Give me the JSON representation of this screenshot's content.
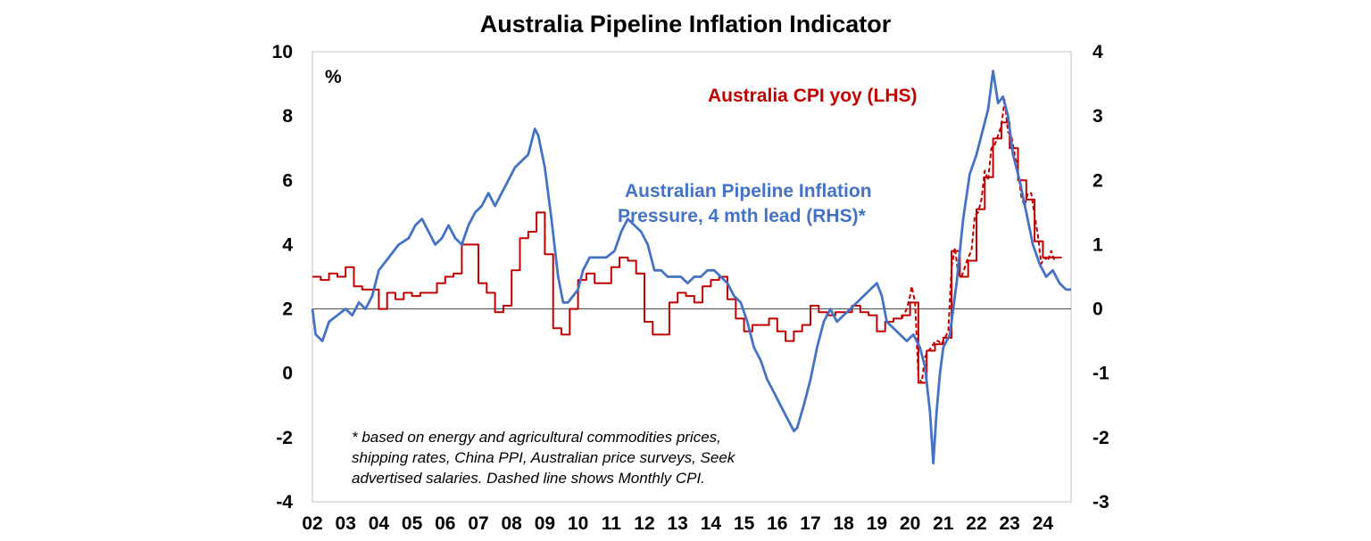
{
  "chart_data": {
    "type": "line",
    "title": "Australia Pipeline Inflation Indicator",
    "unit_label": "%",
    "x_tick_labels": [
      "02",
      "03",
      "04",
      "05",
      "06",
      "07",
      "08",
      "09",
      "10",
      "11",
      "12",
      "13",
      "14",
      "15",
      "16",
      "17",
      "18",
      "19",
      "20",
      "21",
      "22",
      "23",
      "24"
    ],
    "x_range": [
      2002.0,
      2024.85
    ],
    "y_left": {
      "ticks": [
        -4,
        -2,
        0,
        2,
        4,
        6,
        8,
        10
      ],
      "range": [
        -4,
        10
      ]
    },
    "y_right": {
      "ticks": [
        -3,
        -2,
        -1,
        0,
        1,
        2,
        3,
        4
      ],
      "range": [
        -3,
        4
      ]
    },
    "grid": false,
    "zero_line_right": 0,
    "series": [
      {
        "name": "Australia CPI yoy (LHS)",
        "axis": "left",
        "color": "#C00000",
        "style": "step",
        "points": [
          [
            2002.0,
            3.0
          ],
          [
            2002.25,
            2.9
          ],
          [
            2002.5,
            3.1
          ],
          [
            2002.75,
            3.0
          ],
          [
            2003.0,
            3.3
          ],
          [
            2003.25,
            2.7
          ],
          [
            2003.5,
            2.6
          ],
          [
            2003.75,
            2.6
          ],
          [
            2004.0,
            2.0
          ],
          [
            2004.25,
            2.5
          ],
          [
            2004.5,
            2.3
          ],
          [
            2004.75,
            2.5
          ],
          [
            2005.0,
            2.4
          ],
          [
            2005.25,
            2.5
          ],
          [
            2005.5,
            2.5
          ],
          [
            2005.75,
            2.8
          ],
          [
            2006.0,
            3.0
          ],
          [
            2006.25,
            3.1
          ],
          [
            2006.5,
            4.0
          ],
          [
            2006.75,
            4.0
          ],
          [
            2007.0,
            2.8
          ],
          [
            2007.25,
            2.5
          ],
          [
            2007.5,
            1.9
          ],
          [
            2007.75,
            2.1
          ],
          [
            2008.0,
            3.2
          ],
          [
            2008.25,
            4.2
          ],
          [
            2008.5,
            4.4
          ],
          [
            2008.75,
            5.0
          ],
          [
            2009.0,
            3.7
          ],
          [
            2009.25,
            1.4
          ],
          [
            2009.5,
            1.2
          ],
          [
            2009.75,
            2.0
          ],
          [
            2010.0,
            2.9
          ],
          [
            2010.25,
            3.1
          ],
          [
            2010.5,
            2.8
          ],
          [
            2010.75,
            2.8
          ],
          [
            2011.0,
            3.3
          ],
          [
            2011.25,
            3.6
          ],
          [
            2011.5,
            3.5
          ],
          [
            2011.75,
            3.1
          ],
          [
            2012.0,
            1.6
          ],
          [
            2012.25,
            1.2
          ],
          [
            2012.5,
            1.2
          ],
          [
            2012.75,
            2.2
          ],
          [
            2013.0,
            2.5
          ],
          [
            2013.25,
            2.4
          ],
          [
            2013.5,
            2.2
          ],
          [
            2013.75,
            2.7
          ],
          [
            2014.0,
            2.9
          ],
          [
            2014.25,
            3.0
          ],
          [
            2014.5,
            2.3
          ],
          [
            2014.75,
            1.7
          ],
          [
            2015.0,
            1.3
          ],
          [
            2015.25,
            1.5
          ],
          [
            2015.5,
            1.5
          ],
          [
            2015.75,
            1.7
          ],
          [
            2016.0,
            1.3
          ],
          [
            2016.25,
            1.0
          ],
          [
            2016.5,
            1.3
          ],
          [
            2016.75,
            1.5
          ],
          [
            2017.0,
            2.1
          ],
          [
            2017.25,
            1.9
          ],
          [
            2017.5,
            1.8
          ],
          [
            2017.75,
            1.9
          ],
          [
            2018.0,
            1.9
          ],
          [
            2018.25,
            2.1
          ],
          [
            2018.5,
            1.9
          ],
          [
            2018.75,
            1.8
          ],
          [
            2019.0,
            1.3
          ],
          [
            2019.25,
            1.6
          ],
          [
            2019.5,
            1.7
          ],
          [
            2019.75,
            1.8
          ],
          [
            2020.0,
            2.2
          ],
          [
            2020.25,
            -0.3
          ],
          [
            2020.5,
            0.7
          ],
          [
            2020.75,
            0.9
          ],
          [
            2021.0,
            1.1
          ],
          [
            2021.25,
            3.8
          ],
          [
            2021.5,
            3.0
          ],
          [
            2021.75,
            3.5
          ],
          [
            2022.0,
            5.1
          ],
          [
            2022.25,
            6.1
          ],
          [
            2022.5,
            7.3
          ],
          [
            2022.75,
            7.8
          ],
          [
            2023.0,
            7.0
          ],
          [
            2023.25,
            6.0
          ],
          [
            2023.5,
            5.4
          ],
          [
            2023.75,
            4.1
          ],
          [
            2024.0,
            3.6
          ],
          [
            2024.25,
            3.6
          ]
        ]
      },
      {
        "name": "Monthly CPI",
        "axis": "left",
        "color": "#C00000",
        "style": "dashed",
        "points": [
          [
            2019.75,
            1.7
          ],
          [
            2019.9,
            2.0
          ],
          [
            2020.0,
            2.4
          ],
          [
            2020.05,
            2.7
          ],
          [
            2020.15,
            2.2
          ],
          [
            2020.25,
            -0.1
          ],
          [
            2020.35,
            -0.3
          ],
          [
            2020.45,
            0.5
          ],
          [
            2020.55,
            0.7
          ],
          [
            2020.65,
            0.8
          ],
          [
            2020.75,
            1.0
          ],
          [
            2020.85,
            1.0
          ],
          [
            2020.95,
            0.9
          ],
          [
            2021.05,
            1.1
          ],
          [
            2021.15,
            1.3
          ],
          [
            2021.25,
            3.3
          ],
          [
            2021.35,
            3.9
          ],
          [
            2021.45,
            3.1
          ],
          [
            2021.55,
            3.0
          ],
          [
            2021.65,
            3.3
          ],
          [
            2021.75,
            3.6
          ],
          [
            2021.85,
            3.8
          ],
          [
            2021.95,
            4.9
          ],
          [
            2022.05,
            5.0
          ],
          [
            2022.15,
            5.4
          ],
          [
            2022.25,
            6.3
          ],
          [
            2022.35,
            6.0
          ],
          [
            2022.45,
            7.0
          ],
          [
            2022.55,
            7.1
          ],
          [
            2022.65,
            7.4
          ],
          [
            2022.75,
            7.7
          ],
          [
            2022.85,
            8.5
          ],
          [
            2022.95,
            7.5
          ],
          [
            2023.05,
            7.4
          ],
          [
            2023.15,
            6.8
          ],
          [
            2023.25,
            6.3
          ],
          [
            2023.35,
            5.5
          ],
          [
            2023.45,
            5.2
          ],
          [
            2023.55,
            5.6
          ],
          [
            2023.65,
            5.6
          ],
          [
            2023.75,
            4.9
          ],
          [
            2023.85,
            4.3
          ],
          [
            2023.95,
            3.4
          ],
          [
            2024.05,
            3.6
          ],
          [
            2024.15,
            3.5
          ],
          [
            2024.25,
            3.8
          ],
          [
            2024.35,
            3.5
          ]
        ]
      },
      {
        "name": "Australian Pipeline Inflation Pressure, 4 mth lead (RHS)*",
        "axis": "right",
        "color": "#4472C4",
        "style": "solid",
        "points": [
          [
            2002.0,
            0.0
          ],
          [
            2002.1,
            -0.4
          ],
          [
            2002.3,
            -0.5
          ],
          [
            2002.5,
            -0.2
          ],
          [
            2002.75,
            -0.1
          ],
          [
            2003.0,
            0.0
          ],
          [
            2003.2,
            -0.1
          ],
          [
            2003.4,
            0.1
          ],
          [
            2003.6,
            0.0
          ],
          [
            2003.8,
            0.2
          ],
          [
            2004.0,
            0.6
          ],
          [
            2004.3,
            0.8
          ],
          [
            2004.6,
            1.0
          ],
          [
            2004.9,
            1.1
          ],
          [
            2005.1,
            1.3
          ],
          [
            2005.3,
            1.4
          ],
          [
            2005.5,
            1.2
          ],
          [
            2005.7,
            1.0
          ],
          [
            2005.9,
            1.1
          ],
          [
            2006.1,
            1.3
          ],
          [
            2006.3,
            1.1
          ],
          [
            2006.5,
            1.0
          ],
          [
            2006.7,
            1.3
          ],
          [
            2006.9,
            1.5
          ],
          [
            2007.1,
            1.6
          ],
          [
            2007.3,
            1.8
          ],
          [
            2007.5,
            1.6
          ],
          [
            2007.7,
            1.8
          ],
          [
            2007.9,
            2.0
          ],
          [
            2008.1,
            2.2
          ],
          [
            2008.3,
            2.3
          ],
          [
            2008.5,
            2.4
          ],
          [
            2008.7,
            2.8
          ],
          [
            2008.8,
            2.7
          ],
          [
            2009.0,
            2.2
          ],
          [
            2009.2,
            1.4
          ],
          [
            2009.4,
            0.5
          ],
          [
            2009.55,
            0.1
          ],
          [
            2009.7,
            0.1
          ],
          [
            2009.85,
            0.2
          ],
          [
            2010.0,
            0.3
          ],
          [
            2010.15,
            0.6
          ],
          [
            2010.35,
            0.8
          ],
          [
            2010.6,
            0.8
          ],
          [
            2010.85,
            0.8
          ],
          [
            2011.1,
            0.9
          ],
          [
            2011.3,
            1.2
          ],
          [
            2011.5,
            1.4
          ],
          [
            2011.7,
            1.3
          ],
          [
            2011.9,
            1.2
          ],
          [
            2012.1,
            1.0
          ],
          [
            2012.3,
            0.6
          ],
          [
            2012.5,
            0.6
          ],
          [
            2012.7,
            0.5
          ],
          [
            2012.9,
            0.5
          ],
          [
            2013.1,
            0.5
          ],
          [
            2013.3,
            0.4
          ],
          [
            2013.5,
            0.5
          ],
          [
            2013.7,
            0.5
          ],
          [
            2013.9,
            0.6
          ],
          [
            2014.1,
            0.6
          ],
          [
            2014.3,
            0.5
          ],
          [
            2014.5,
            0.4
          ],
          [
            2014.7,
            0.2
          ],
          [
            2014.9,
            0.1
          ],
          [
            2015.1,
            -0.2
          ],
          [
            2015.3,
            -0.6
          ],
          [
            2015.5,
            -0.8
          ],
          [
            2015.7,
            -1.1
          ],
          [
            2015.9,
            -1.3
          ],
          [
            2016.1,
            -1.5
          ],
          [
            2016.3,
            -1.7
          ],
          [
            2016.5,
            -1.9
          ],
          [
            2016.6,
            -1.85
          ],
          [
            2016.8,
            -1.5
          ],
          [
            2017.0,
            -1.1
          ],
          [
            2017.2,
            -0.6
          ],
          [
            2017.4,
            -0.2
          ],
          [
            2017.6,
            0.0
          ],
          [
            2017.8,
            -0.2
          ],
          [
            2018.0,
            -0.1
          ],
          [
            2018.2,
            0.0
          ],
          [
            2018.4,
            0.1
          ],
          [
            2018.6,
            0.2
          ],
          [
            2018.8,
            0.3
          ],
          [
            2019.0,
            0.4
          ],
          [
            2019.15,
            0.2
          ],
          [
            2019.3,
            -0.2
          ],
          [
            2019.5,
            -0.3
          ],
          [
            2019.7,
            -0.4
          ],
          [
            2019.9,
            -0.5
          ],
          [
            2020.1,
            -0.4
          ],
          [
            2020.3,
            -0.6
          ],
          [
            2020.45,
            -0.9
          ],
          [
            2020.6,
            -1.6
          ],
          [
            2020.7,
            -2.4
          ],
          [
            2020.8,
            -1.6
          ],
          [
            2020.9,
            -1.0
          ],
          [
            2021.0,
            -0.6
          ],
          [
            2021.2,
            -0.4
          ],
          [
            2021.4,
            0.4
          ],
          [
            2021.6,
            1.4
          ],
          [
            2021.8,
            2.1
          ],
          [
            2022.0,
            2.4
          ],
          [
            2022.2,
            2.8
          ],
          [
            2022.35,
            3.1
          ],
          [
            2022.5,
            3.7
          ],
          [
            2022.65,
            3.2
          ],
          [
            2022.8,
            3.3
          ],
          [
            2022.95,
            3.0
          ],
          [
            2023.1,
            2.4
          ],
          [
            2023.3,
            2.0
          ],
          [
            2023.5,
            1.5
          ],
          [
            2023.7,
            1.0
          ],
          [
            2023.9,
            0.7
          ],
          [
            2024.1,
            0.5
          ],
          [
            2024.3,
            0.6
          ],
          [
            2024.5,
            0.4
          ],
          [
            2024.7,
            0.3
          ],
          [
            2024.85,
            0.3
          ]
        ]
      }
    ],
    "annotations": {
      "red_label": "Australia CPI yoy (LHS)",
      "blue_label_line1": "Australian Pipeline Inflation",
      "blue_label_line2": "Pressure, 4 mth lead (RHS)*",
      "footnote_line1": "* based on energy and agricultural commodities prices,",
      "footnote_line2": "shipping rates, China PPI, Australian price surveys, Seek",
      "footnote_line3": "advertised salaries. Dashed line shows Monthly CPI."
    }
  }
}
